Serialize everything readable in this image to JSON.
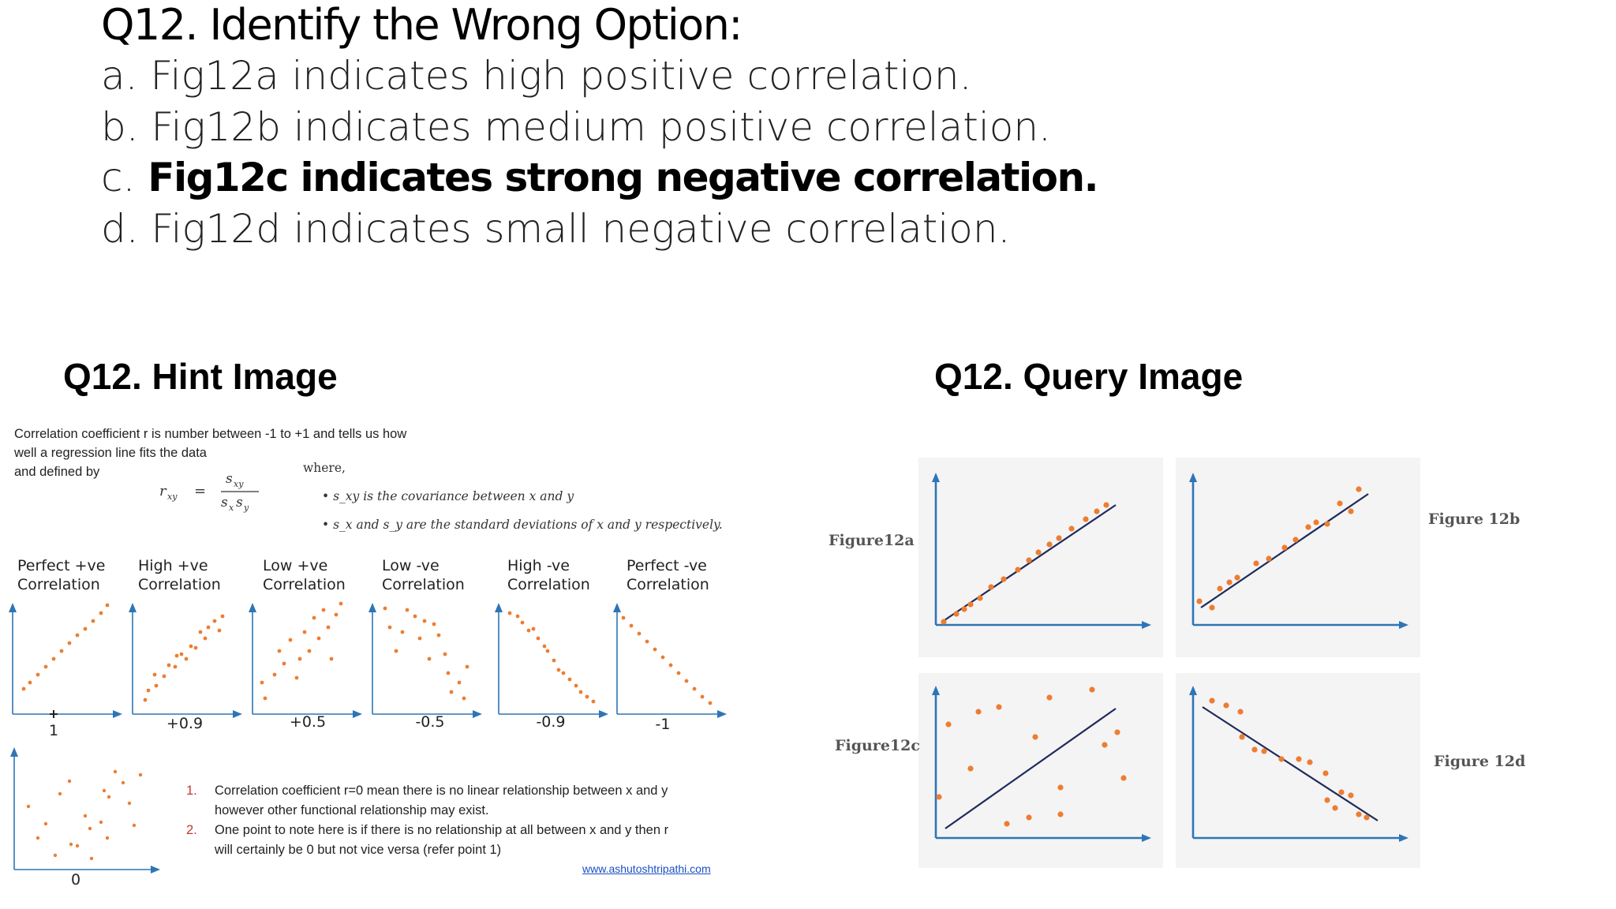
{
  "question": {
    "title": "Q12. Identify the Wrong Option:",
    "options": [
      {
        "prefix": "a.",
        "text": "Fig12a indicates high positive correlation."
      },
      {
        "prefix": "b.",
        "text": "Fig12b indicates medium positive correlation."
      },
      {
        "prefix": "c.",
        "text": "Fig12c indicates strong negative correlation."
      },
      {
        "prefix": "d.",
        "text": "Fig12d indicates small negative correlation."
      }
    ]
  },
  "hint": {
    "title": "Q12. Hint Image",
    "intro_line1": "Correlation coefficient r is number between -1 to +1 and tells us how",
    "intro_line2": "well a regression line fits the data",
    "intro_line3": "and defined by",
    "where": "where,",
    "formula_lhs": "r",
    "formula_lhs_sub": "xy",
    "formula_num": "s",
    "formula_num_sub": "xy",
    "formula_den": "s",
    "formula_den_sub1": "x",
    "formula_den_mid": "s",
    "formula_den_sub2": "y",
    "bullet1": "s_xy is the covariance between x and y",
    "bullet2": "s_x and s_y are the standard deviations of x and y respectively.",
    "plots": [
      {
        "label1": "Perfect +ve",
        "label2": "Correlation",
        "value": "1"
      },
      {
        "label1": "High +ve",
        "label2": "Correlation",
        "value": "+0.9"
      },
      {
        "label1": "Low +ve",
        "label2": "Correlation",
        "value": "+0.5"
      },
      {
        "label1": "Low -ve",
        "label2": "Correlation",
        "value": "-0.5"
      },
      {
        "label1": "High -ve",
        "label2": "Correlation",
        "value": "-0.9"
      },
      {
        "label1": "Perfect -ve",
        "label2": "Correlation",
        "value": "-1"
      }
    ],
    "zero_value": "0",
    "note1_num": "1.",
    "note1_line1": "Correlation coefficient r=0 mean there is no linear relationship between x and y",
    "note1_line2": "however other functional relationship may exist.",
    "note2_num": "2.",
    "note2_line1": "One point to note here is if there is no relationship at all between x and y then r",
    "note2_line2": "will certainly be 0 but not vice versa (refer point 1)",
    "source": "www.ashutoshtripathi.com"
  },
  "query": {
    "title": "Q12. Query Image",
    "figures": [
      {
        "label": "Figure12a"
      },
      {
        "label": "Figure 12b"
      },
      {
        "label": "Figure12c"
      },
      {
        "label": "Figure 12d"
      }
    ]
  },
  "colors": {
    "axis": "#2e75b6",
    "dot": "#ed7d31",
    "regression_line": "#1f2a5c"
  }
}
